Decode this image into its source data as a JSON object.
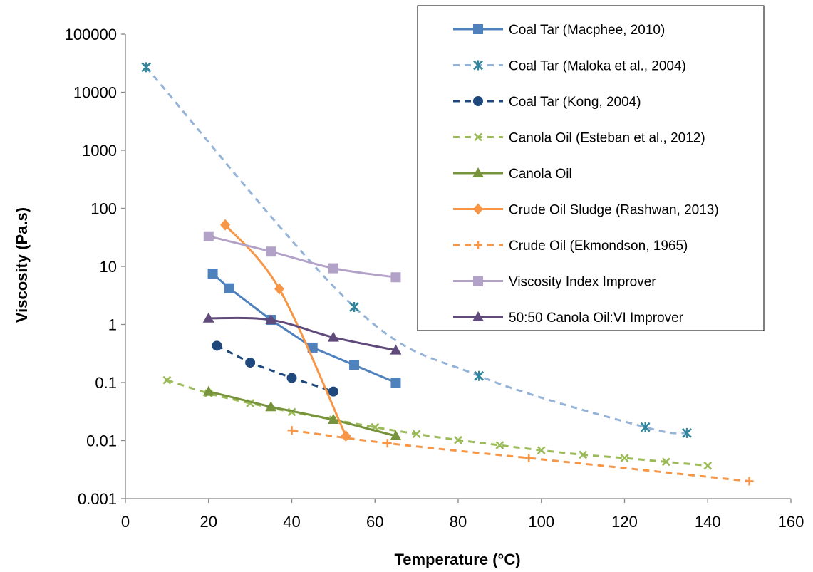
{
  "chart_data": {
    "type": "scatter",
    "title": "",
    "xlabel": "Temperature (°C)",
    "ylabel": "Viscosity (Pa.s)",
    "xlim": [
      0,
      160
    ],
    "ylim": [
      0.001,
      100000
    ],
    "yscale": "log",
    "grid": false,
    "legend_position": "top-right",
    "x_ticks": [
      "0",
      "20",
      "40",
      "60",
      "80",
      "100",
      "120",
      "140",
      "160"
    ],
    "y_ticks": [
      "0.001",
      "0.01",
      "0.1",
      "1",
      "10",
      "100",
      "1000",
      "10000",
      "100000"
    ],
    "series": [
      {
        "name": "Coal Tar (Macphee, 2010)",
        "color": "#4F81BD",
        "marker": "square",
        "line": "solid",
        "smooth": false,
        "points": [
          [
            21,
            7.5
          ],
          [
            25,
            4.2
          ],
          [
            35,
            1.2
          ],
          [
            45,
            0.4
          ],
          [
            55,
            0.2
          ],
          [
            65,
            0.1
          ]
        ]
      },
      {
        "name": "Coal Tar (Maloka et al., 2004)",
        "color": "#95B3D7",
        "markerColor": "#31859C",
        "marker": "star",
        "line": "dashed",
        "smooth": true,
        "points": [
          [
            5,
            27000
          ],
          [
            55,
            2.0
          ],
          [
            85,
            0.13
          ],
          [
            125,
            0.017
          ],
          [
            135,
            0.0135
          ]
        ]
      },
      {
        "name": "Coal Tar (Kong, 2004)",
        "color": "#1F497D",
        "marker": "circle",
        "line": "dashed",
        "smooth": false,
        "points": [
          [
            22,
            0.43
          ],
          [
            30,
            0.22
          ],
          [
            40,
            0.12
          ],
          [
            50,
            0.07
          ]
        ]
      },
      {
        "name": "Canola Oil (Esteban et al., 2012)",
        "color": "#9BBB59",
        "marker": "x",
        "line": "dashed",
        "smooth": true,
        "points": [
          [
            10,
            0.11
          ],
          [
            20,
            0.065
          ],
          [
            30,
            0.044
          ],
          [
            40,
            0.031
          ],
          [
            50,
            0.023
          ],
          [
            60,
            0.017
          ],
          [
            70,
            0.013
          ],
          [
            80,
            0.0102
          ],
          [
            90,
            0.0083
          ],
          [
            100,
            0.0068
          ],
          [
            110,
            0.0057
          ],
          [
            120,
            0.005
          ],
          [
            130,
            0.0043
          ],
          [
            140,
            0.0037
          ]
        ]
      },
      {
        "name": "Canola Oil",
        "color": "#77933C",
        "marker": "triangle",
        "line": "solid",
        "smooth": false,
        "points": [
          [
            20,
            0.07
          ],
          [
            35,
            0.038
          ],
          [
            50,
            0.023
          ],
          [
            65,
            0.012
          ]
        ]
      },
      {
        "name": "Crude Oil Sludge (Rashwan, 2013)",
        "color": "#F79646",
        "marker": "diamond",
        "line": "solid",
        "smooth": true,
        "points": [
          [
            24,
            52
          ],
          [
            37,
            4.1
          ],
          [
            53,
            0.012
          ]
        ]
      },
      {
        "name": "Crude Oil (Ekmondson, 1965)",
        "color": "#F79646",
        "marker": "plus",
        "line": "dashed",
        "smooth": true,
        "points": [
          [
            40,
            0.015
          ],
          [
            63,
            0.009
          ],
          [
            97,
            0.005
          ],
          [
            150,
            0.002
          ]
        ]
      },
      {
        "name": "Viscosity Index Improver",
        "color": "#B3A2C7",
        "marker": "square",
        "line": "solid",
        "smooth": true,
        "points": [
          [
            20,
            33
          ],
          [
            35,
            18
          ],
          [
            50,
            9.3
          ],
          [
            65,
            6.5
          ]
        ]
      },
      {
        "name": "50:50 Canola Oil:VI Improver",
        "color": "#604A7B",
        "marker": "triangle",
        "line": "solid",
        "smooth": true,
        "points": [
          [
            20,
            1.28
          ],
          [
            35,
            1.2
          ],
          [
            50,
            0.6
          ],
          [
            65,
            0.36
          ]
        ]
      }
    ]
  }
}
